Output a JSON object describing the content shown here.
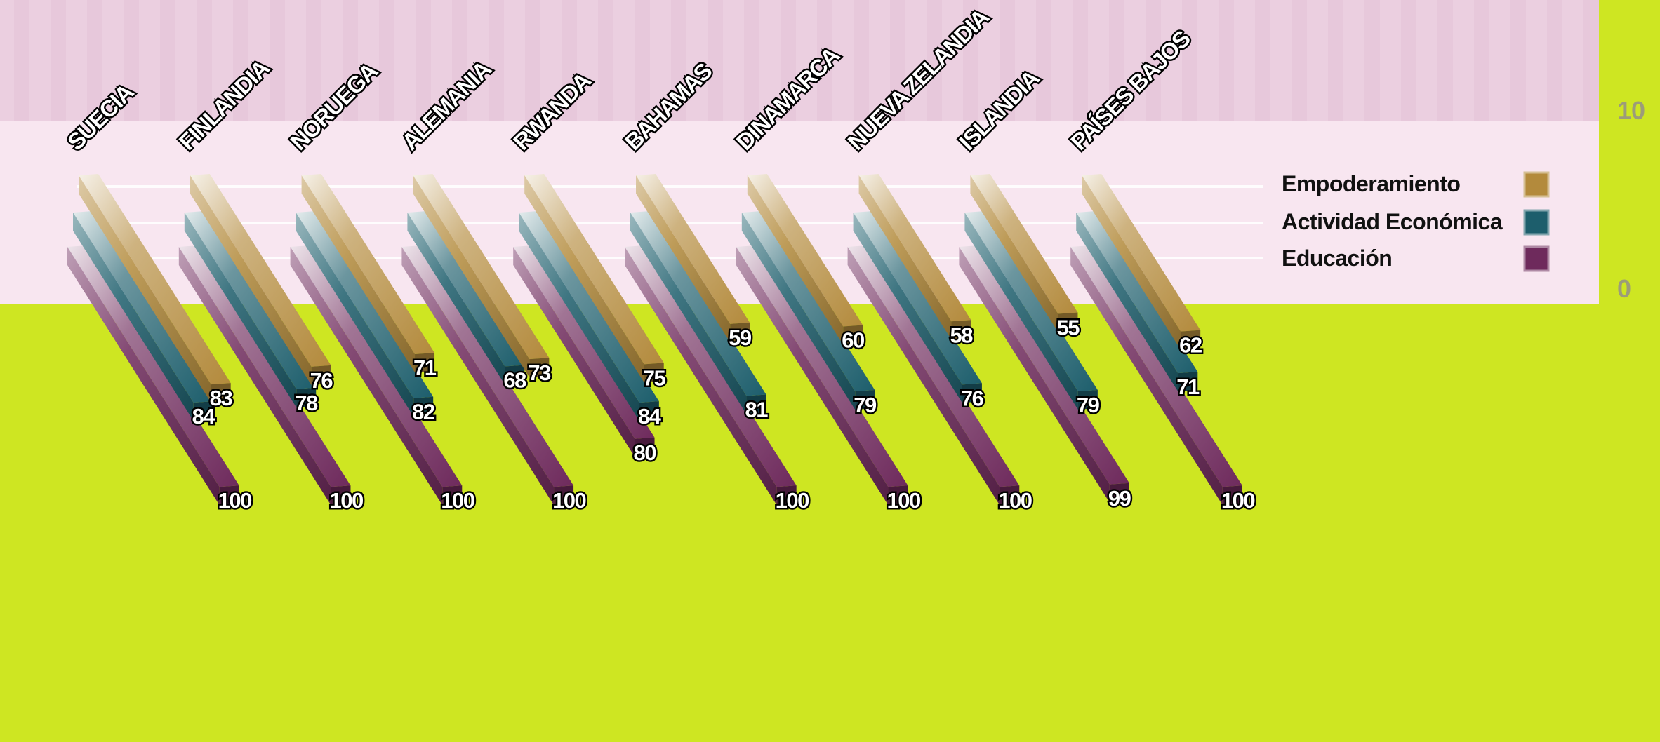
{
  "chart_data": {
    "type": "bar",
    "categories": [
      "SUECIA",
      "FINLANDIA",
      "NORUEGA",
      "ALEMANIA",
      "RWANDA",
      "BAHAMAS",
      "DINAMARCA",
      "NUEVA ZELANDIA",
      "ISLANDIA",
      "PAÍSES BAJOS"
    ],
    "series": [
      {
        "name": "Empoderamiento",
        "color": "#b38a3c",
        "values": [
          83,
          76,
          71,
          73,
          75,
          59,
          60,
          58,
          55,
          62
        ]
      },
      {
        "name": "Actividad Económica",
        "color": "#1d5e6c",
        "values": [
          84,
          78,
          82,
          68,
          84,
          81,
          79,
          76,
          79,
          71
        ]
      },
      {
        "name": "Educación",
        "color": "#6e2a5c",
        "values": [
          100,
          100,
          100,
          100,
          80,
          100,
          100,
          100,
          99,
          100
        ]
      }
    ],
    "ylim": [
      0,
      100
    ],
    "yticks": [
      "10",
      "0"
    ],
    "legend_position": "top-right",
    "colors": {
      "background": "#cee622",
      "panel_dark": "#ebcfe0",
      "panel_light": "#f8e6f0"
    }
  }
}
